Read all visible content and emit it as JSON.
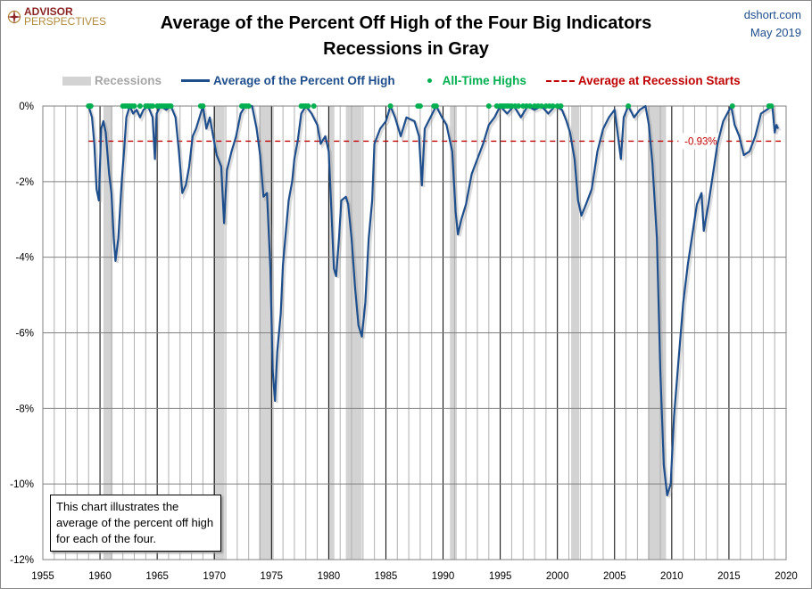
{
  "header": {
    "logo": {
      "line1": "ADVISOR",
      "line2": "PERSPECTIVES"
    },
    "title_line1": "Average of the Percent Off High of the Four Big Indicators",
    "title_line2": "Recessions in Gray",
    "source": "dshort.com",
    "date": "May 2019"
  },
  "note": "This chart illustrates the average of the percent off high for each of the four.",
  "colors": {
    "line": "#1f4e8c",
    "highs": "#00b050",
    "average": "#c00000",
    "recession": "#d3d3d3"
  },
  "chart_data": {
    "type": "line",
    "title": "Average of the Percent Off High of the Four Big Indicators",
    "subtitle": "Recessions in Gray",
    "legend_position": "top",
    "legend": [
      "Recessions",
      "Average of the Percent Off High",
      "All-Time Highs",
      "Average at Recession Starts"
    ],
    "xlim": [
      1955,
      2020
    ],
    "ylim": [
      -12,
      0
    ],
    "x_ticks": [
      "1955",
      "1960",
      "1965",
      "1970",
      "1975",
      "1980",
      "1985",
      "1990",
      "1995",
      "2000",
      "2005",
      "2010",
      "2015",
      "2020"
    ],
    "y_ticks": [
      "0%",
      "-2%",
      "-4%",
      "-6%",
      "-8%",
      "-10%",
      "-12%"
    ],
    "grid": true,
    "recessions": [
      [
        1960.3,
        1961.1
      ],
      [
        1969.9,
        1970.9
      ],
      [
        1973.9,
        1975.2
      ],
      [
        1980.0,
        1980.5
      ],
      [
        1981.5,
        1982.9
      ],
      [
        1990.6,
        1991.2
      ],
      [
        2001.2,
        2001.9
      ],
      [
        2007.9,
        2009.5
      ]
    ],
    "average_at_recession_starts": {
      "value": -0.93,
      "label": "-0.93%"
    },
    "series": [
      {
        "name": "Average of the Percent Off High",
        "points": [
          [
            1959.0,
            0
          ],
          [
            1959.3,
            -0.3
          ],
          [
            1959.5,
            -1.0
          ],
          [
            1959.7,
            -2.2
          ],
          [
            1959.9,
            -2.5
          ],
          [
            1960.1,
            -0.6
          ],
          [
            1960.3,
            -0.4
          ],
          [
            1960.5,
            -0.7
          ],
          [
            1960.8,
            -1.8
          ],
          [
            1961.0,
            -2.3
          ],
          [
            1961.2,
            -3.5
          ],
          [
            1961.35,
            -4.1
          ],
          [
            1961.6,
            -3.5
          ],
          [
            1961.9,
            -2.0
          ],
          [
            1962.1,
            -1.2
          ],
          [
            1962.3,
            -0.3
          ],
          [
            1962.6,
            0
          ],
          [
            1962.9,
            -0.2
          ],
          [
            1963.2,
            -0.1
          ],
          [
            1963.5,
            -0.3
          ],
          [
            1963.8,
            -0.1
          ],
          [
            1964.2,
            0
          ],
          [
            1964.6,
            -0.3
          ],
          [
            1964.8,
            -1.4
          ],
          [
            1964.95,
            -0.2
          ],
          [
            1965.3,
            0
          ],
          [
            1965.8,
            -0.1
          ],
          [
            1966.2,
            0
          ],
          [
            1966.6,
            -0.3
          ],
          [
            1966.9,
            -1.2
          ],
          [
            1967.2,
            -2.3
          ],
          [
            1967.5,
            -2.1
          ],
          [
            1967.8,
            -1.6
          ],
          [
            1968.1,
            -0.8
          ],
          [
            1968.4,
            -0.6
          ],
          [
            1968.7,
            -0.3
          ],
          [
            1969.0,
            0
          ],
          [
            1969.3,
            -0.6
          ],
          [
            1969.6,
            -0.3
          ],
          [
            1969.9,
            -0.8
          ],
          [
            1970.2,
            -1.3
          ],
          [
            1970.6,
            -1.6
          ],
          [
            1970.85,
            -3.1
          ],
          [
            1971.1,
            -1.7
          ],
          [
            1971.5,
            -1.2
          ],
          [
            1971.9,
            -0.8
          ],
          [
            1972.3,
            -0.2
          ],
          [
            1972.7,
            0
          ],
          [
            1973.3,
            0
          ],
          [
            1973.7,
            -0.6
          ],
          [
            1974.0,
            -1.3
          ],
          [
            1974.3,
            -2.4
          ],
          [
            1974.6,
            -2.3
          ],
          [
            1974.9,
            -4.3
          ],
          [
            1975.1,
            -7.0
          ],
          [
            1975.3,
            -7.8
          ],
          [
            1975.5,
            -6.5
          ],
          [
            1975.8,
            -5.5
          ],
          [
            1976.0,
            -4.2
          ],
          [
            1976.2,
            -3.5
          ],
          [
            1976.5,
            -2.5
          ],
          [
            1976.8,
            -2.0
          ],
          [
            1977.0,
            -1.4
          ],
          [
            1977.3,
            -0.9
          ],
          [
            1977.6,
            -0.2
          ],
          [
            1978.0,
            0
          ],
          [
            1978.5,
            -0.2
          ],
          [
            1979.0,
            -0.5
          ],
          [
            1979.3,
            -1.0
          ],
          [
            1979.7,
            -0.8
          ],
          [
            1980.0,
            -1.2
          ],
          [
            1980.2,
            -2.5
          ],
          [
            1980.45,
            -4.3
          ],
          [
            1980.65,
            -4.5
          ],
          [
            1980.9,
            -3.5
          ],
          [
            1981.1,
            -2.5
          ],
          [
            1981.5,
            -2.4
          ],
          [
            1981.7,
            -2.6
          ],
          [
            1982.0,
            -3.5
          ],
          [
            1982.3,
            -4.8
          ],
          [
            1982.6,
            -5.8
          ],
          [
            1982.9,
            -6.1
          ],
          [
            1983.2,
            -5.2
          ],
          [
            1983.5,
            -3.5
          ],
          [
            1983.8,
            -2.5
          ],
          [
            1984.0,
            -1.0
          ],
          [
            1984.5,
            -0.6
          ],
          [
            1985.0,
            -0.4
          ],
          [
            1985.4,
            0
          ],
          [
            1985.8,
            -0.3
          ],
          [
            1986.3,
            -0.8
          ],
          [
            1986.8,
            -0.3
          ],
          [
            1987.5,
            -0.4
          ],
          [
            1987.9,
            -0.8
          ],
          [
            1988.15,
            -2.1
          ],
          [
            1988.4,
            -0.6
          ],
          [
            1988.9,
            -0.3
          ],
          [
            1989.4,
            0
          ],
          [
            1989.9,
            -0.3
          ],
          [
            1990.3,
            -0.5
          ],
          [
            1990.8,
            -1.2
          ],
          [
            1991.1,
            -2.8
          ],
          [
            1991.3,
            -3.4
          ],
          [
            1991.6,
            -3.0
          ],
          [
            1992.0,
            -2.6
          ],
          [
            1992.5,
            -1.8
          ],
          [
            1993.0,
            -1.4
          ],
          [
            1993.5,
            -1.0
          ],
          [
            1994.0,
            -0.5
          ],
          [
            1994.5,
            -0.3
          ],
          [
            1995.0,
            0
          ],
          [
            1995.6,
            -0.2
          ],
          [
            1996.2,
            0
          ],
          [
            1996.8,
            -0.3
          ],
          [
            1997.4,
            0
          ],
          [
            1998.0,
            -0.1
          ],
          [
            1998.6,
            0
          ],
          [
            1999.2,
            -0.2
          ],
          [
            1999.8,
            0
          ],
          [
            2000.4,
            -0.1
          ],
          [
            2000.8,
            -0.4
          ],
          [
            2001.1,
            -0.7
          ],
          [
            2001.5,
            -1.4
          ],
          [
            2001.8,
            -2.5
          ],
          [
            2002.1,
            -2.9
          ],
          [
            2002.5,
            -2.6
          ],
          [
            2003.0,
            -2.2
          ],
          [
            2003.5,
            -1.2
          ],
          [
            2004.0,
            -0.6
          ],
          [
            2004.5,
            -0.3
          ],
          [
            2005.0,
            -0.1
          ],
          [
            2005.3,
            -0.8
          ],
          [
            2005.55,
            -1.4
          ],
          [
            2005.8,
            -0.3
          ],
          [
            2006.2,
            0
          ],
          [
            2006.7,
            -0.3
          ],
          [
            2007.2,
            -0.1
          ],
          [
            2007.7,
            0
          ],
          [
            2008.0,
            -0.5
          ],
          [
            2008.3,
            -1.5
          ],
          [
            2008.7,
            -3.5
          ],
          [
            2009.0,
            -7.0
          ],
          [
            2009.3,
            -9.5
          ],
          [
            2009.6,
            -10.3
          ],
          [
            2009.9,
            -10.0
          ],
          [
            2010.2,
            -8.2
          ],
          [
            2010.6,
            -6.7
          ],
          [
            2011.0,
            -5.2
          ],
          [
            2011.4,
            -4.2
          ],
          [
            2011.8,
            -3.4
          ],
          [
            2012.2,
            -2.6
          ],
          [
            2012.6,
            -2.3
          ],
          [
            2012.8,
            -3.3
          ],
          [
            2013.2,
            -2.6
          ],
          [
            2013.6,
            -1.8
          ],
          [
            2014.0,
            -1.0
          ],
          [
            2014.5,
            -0.4
          ],
          [
            2015.2,
            0
          ],
          [
            2015.5,
            -0.5
          ],
          [
            2015.9,
            -0.8
          ],
          [
            2016.3,
            -1.3
          ],
          [
            2016.8,
            -1.2
          ],
          [
            2017.3,
            -0.8
          ],
          [
            2017.8,
            -0.2
          ],
          [
            2018.3,
            -0.1
          ],
          [
            2018.8,
            0
          ],
          [
            2019.0,
            -0.7
          ],
          [
            2019.15,
            -0.5
          ],
          [
            2019.3,
            -0.6
          ]
        ]
      }
    ],
    "all_time_highs": [
      1959.0,
      1959.1,
      1959.2,
      1962.0,
      1962.2,
      1962.4,
      1962.6,
      1962.8,
      1963.0,
      1963.5,
      1964.0,
      1964.2,
      1964.4,
      1964.6,
      1965.0,
      1965.2,
      1965.4,
      1965.6,
      1965.8,
      1966.0,
      1966.2,
      1968.8,
      1969.0,
      1972.4,
      1972.6,
      1972.8,
      1973.0,
      1977.6,
      1977.8,
      1978.0,
      1978.2,
      1978.7,
      1985.4,
      1987.8,
      1988.0,
      1989.2,
      1989.4,
      1994.0,
      1994.7,
      1995.0,
      1995.2,
      1995.4,
      1995.6,
      1995.8,
      1996.0,
      1996.3,
      1996.6,
      1997.0,
      1997.3,
      1997.6,
      1998.0,
      1998.3,
      1998.6,
      1999.0,
      1999.3,
      1999.6,
      2000.0,
      2000.3,
      2006.2,
      2015.3,
      2018.5,
      2018.7
    ]
  }
}
